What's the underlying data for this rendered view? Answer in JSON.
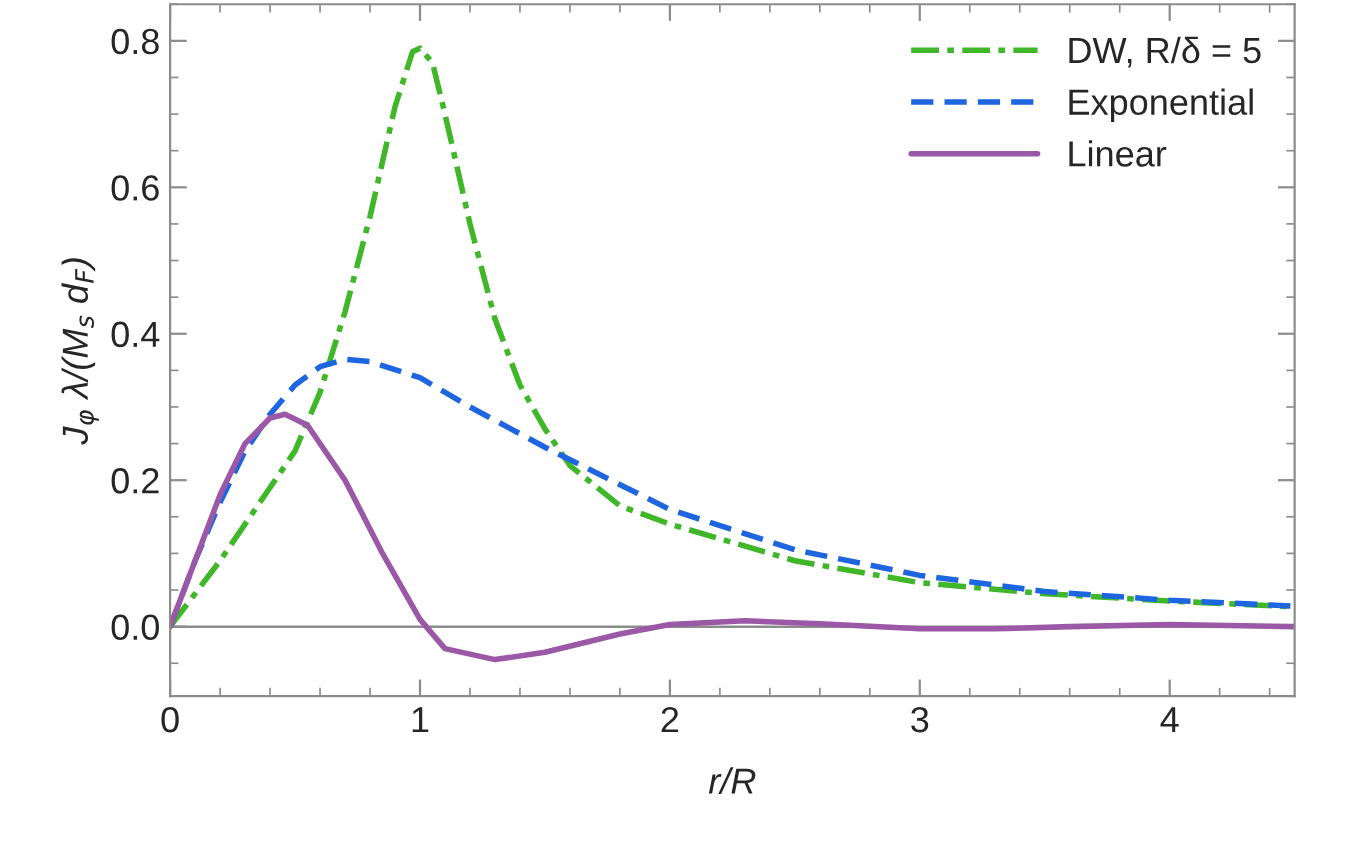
{
  "chart_data": {
    "type": "line",
    "xlabel": "r/R",
    "ylabel": "J$_{φ}$ λ/(M$_{s}$ d$_{F}$)",
    "xlim": [
      0,
      4.5
    ],
    "ylim": [
      -0.095,
      0.85
    ],
    "xticks": [
      0,
      1,
      2,
      3,
      4
    ],
    "yticks": [
      {
        "value": 0,
        "label": "0.0"
      },
      0.2,
      0.4,
      0.6,
      0.8
    ],
    "grid": false,
    "legend": "top right",
    "marker": "none",
    "ref_lines": [
      {
        "axis": "y",
        "value": 0,
        "label": null,
        "color": "#8c8c8c"
      }
    ],
    "series": [
      {
        "name": "DW, R/δ = 5",
        "color": "#3fb728",
        "line_style": "dashdot",
        "x": [
          0,
          0.2,
          0.4,
          0.5,
          0.6,
          0.7,
          0.8,
          0.9,
          0.97,
          1.0,
          1.05,
          1.1,
          1.2,
          1.3,
          1.4,
          1.5,
          1.6,
          1.8,
          2.0,
          2.5,
          3.0,
          3.5,
          4.0,
          4.5
        ],
        "values": [
          0,
          0.09,
          0.19,
          0.24,
          0.32,
          0.43,
          0.56,
          0.71,
          0.785,
          0.79,
          0.77,
          0.7,
          0.55,
          0.42,
          0.33,
          0.27,
          0.22,
          0.165,
          0.14,
          0.09,
          0.06,
          0.045,
          0.035,
          0.027
        ]
      },
      {
        "name": "Exponential",
        "color": "#1e66e0",
        "line_style": "dashed",
        "x": [
          0,
          0.1,
          0.2,
          0.3,
          0.4,
          0.5,
          0.6,
          0.7,
          0.8,
          1.0,
          1.2,
          1.5,
          2.0,
          2.5,
          3.0,
          3.5,
          4.0,
          4.5
        ],
        "values": [
          0,
          0.09,
          0.17,
          0.24,
          0.29,
          0.33,
          0.355,
          0.365,
          0.362,
          0.34,
          0.3,
          0.245,
          0.16,
          0.105,
          0.07,
          0.048,
          0.036,
          0.028
        ]
      },
      {
        "name": "Linear",
        "color": "#9b58a6",
        "line_style": "solid",
        "x": [
          0,
          0.1,
          0.2,
          0.3,
          0.4,
          0.46,
          0.55,
          0.7,
          0.85,
          1.0,
          1.1,
          1.3,
          1.5,
          1.8,
          2.0,
          2.3,
          2.6,
          3.0,
          3.3,
          3.6,
          4.0,
          4.5
        ],
        "values": [
          0,
          0.09,
          0.18,
          0.25,
          0.285,
          0.29,
          0.275,
          0.2,
          0.1,
          0.01,
          -0.03,
          -0.045,
          -0.035,
          -0.01,
          0.003,
          0.008,
          0.004,
          -0.003,
          -0.003,
          0,
          0.003,
          0
        ]
      }
    ]
  }
}
